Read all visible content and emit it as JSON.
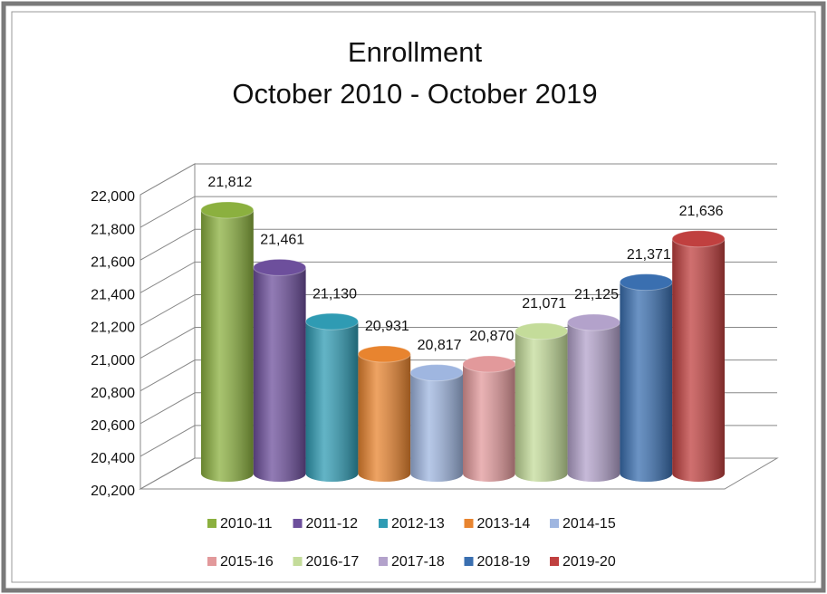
{
  "chart_data": {
    "type": "bar3d",
    "title": "Enrollment",
    "subtitle": "October 2010 - October 2019",
    "ylim": [
      20200,
      22000
    ],
    "yticks": [
      {
        "value": 20200,
        "label": "20,200"
      },
      {
        "value": 20400,
        "label": "20,400"
      },
      {
        "value": 20600,
        "label": "20,600"
      },
      {
        "value": 20800,
        "label": "20,800"
      },
      {
        "value": 21000,
        "label": "21,000"
      },
      {
        "value": 21200,
        "label": "21,200"
      },
      {
        "value": 21400,
        "label": "21,400"
      },
      {
        "value": 21600,
        "label": "21,600"
      },
      {
        "value": 21800,
        "label": "21,800"
      },
      {
        "value": 22000,
        "label": "22,000"
      }
    ],
    "grid": true,
    "series": [
      {
        "name": "2010-11",
        "color": "#8bb03f",
        "values": [
          21812
        ],
        "value_labels": [
          "21,812"
        ]
      },
      {
        "name": "2011-12",
        "color": "#6d4f9c",
        "values": [
          21461
        ],
        "value_labels": [
          "21,461"
        ]
      },
      {
        "name": "2012-13",
        "color": "#2f9bb3",
        "values": [
          21130
        ],
        "value_labels": [
          "21,130"
        ]
      },
      {
        "name": "2013-14",
        "color": "#e8842f",
        "values": [
          20931
        ],
        "value_labels": [
          "20,931"
        ]
      },
      {
        "name": "2014-15",
        "color": "#9fb6e0",
        "values": [
          20817
        ],
        "value_labels": [
          "20,817"
        ]
      },
      {
        "name": "2015-16",
        "color": "#e2999b",
        "values": [
          20870
        ],
        "value_labels": [
          "20,870"
        ]
      },
      {
        "name": "2016-17",
        "color": "#c4dc9a",
        "values": [
          21071
        ],
        "value_labels": [
          "21,071"
        ]
      },
      {
        "name": "2017-18",
        "color": "#b3a2cb",
        "values": [
          21125
        ],
        "value_labels": [
          "21,125"
        ]
      },
      {
        "name": "2018-19",
        "color": "#3a6fb0",
        "values": [
          21371
        ],
        "value_labels": [
          "21,371"
        ]
      },
      {
        "name": "2019-20",
        "color": "#c0403f",
        "values": [
          21636
        ],
        "value_labels": [
          "21,636"
        ]
      }
    ]
  }
}
